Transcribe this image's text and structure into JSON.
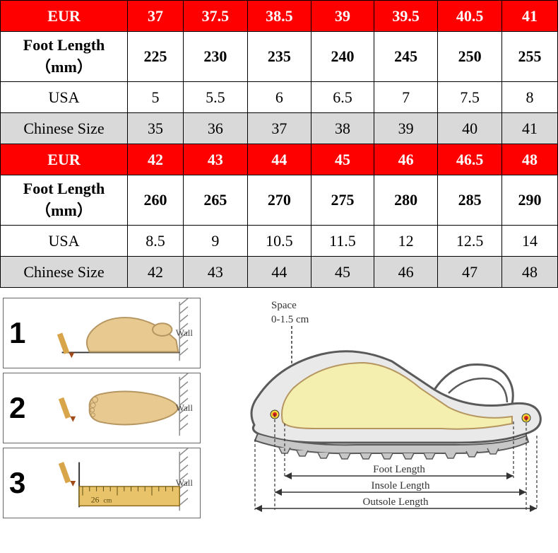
{
  "table": {
    "columns": [
      "label",
      "c1",
      "c2",
      "c3",
      "c4",
      "c5",
      "c6",
      "c7"
    ],
    "label_col_width": 180,
    "header_bg": "#ff0000",
    "header_fg": "#ffffff",
    "alt_bg": "#d9d9d9",
    "border_color": "#000000",
    "rows": [
      {
        "type": "header",
        "label": "EUR",
        "cells": [
          "37",
          "37.5",
          "38.5",
          "39",
          "39.5",
          "40.5",
          "41"
        ]
      },
      {
        "type": "foot",
        "label": "Foot Length（mm）",
        "cells": [
          "225",
          "230",
          "235",
          "240",
          "245",
          "250",
          "255"
        ]
      },
      {
        "type": "usa",
        "label": "USA",
        "cells": [
          "5",
          "5.5",
          "6",
          "6.5",
          "7",
          "7.5",
          "8"
        ]
      },
      {
        "type": "cn",
        "label": "Chinese Size",
        "cells": [
          "35",
          "36",
          "37",
          "38",
          "39",
          "40",
          "41"
        ]
      },
      {
        "type": "header",
        "label": "EUR",
        "cells": [
          "42",
          "43",
          "44",
          "45",
          "46",
          "46.5",
          "48"
        ]
      },
      {
        "type": "foot",
        "label": "Foot Length（mm）",
        "cells": [
          "260",
          "265",
          "270",
          "275",
          "280",
          "285",
          "290"
        ]
      },
      {
        "type": "usa",
        "label": "USA",
        "cells": [
          "8.5",
          "9",
          "10.5",
          "11.5",
          "12",
          "12.5",
          "14"
        ]
      },
      {
        "type": "cn",
        "label": "Chinese Size",
        "cells": [
          "42",
          "43",
          "44",
          "45",
          "46",
          "47",
          "48"
        ]
      }
    ]
  },
  "diagram": {
    "steps": [
      {
        "num": "1",
        "wall": "Wall",
        "ruler": ""
      },
      {
        "num": "2",
        "wall": "Wall",
        "ruler": ""
      },
      {
        "num": "3",
        "wall": "Wall",
        "ruler_label": "26",
        "ruler_unit": "cm"
      }
    ],
    "space_label_line1": "Space",
    "space_label_line2": "0-1.5 cm",
    "measurements": {
      "foot_length": "Foot Length",
      "insole_length": "Insole Length",
      "outsole_length": "Outsole Length"
    },
    "colors": {
      "foot_fill": "#e8c98f",
      "foot_stroke": "#b59560",
      "pencil_body": "#d8a54a",
      "pencil_tip": "#a04a1a",
      "ruler": "#e9c36a",
      "wall_hatch": "#888888",
      "shoe_outline": "#5a5a5a",
      "shoe_upper_fill": "#e9e9e9",
      "shoe_mid_fill": "#f4efae",
      "shoe_sole": "#c7c7c7",
      "marker_red": "#d81e1e",
      "marker_yellow": "#f4d838",
      "arrow": "#333333"
    }
  }
}
